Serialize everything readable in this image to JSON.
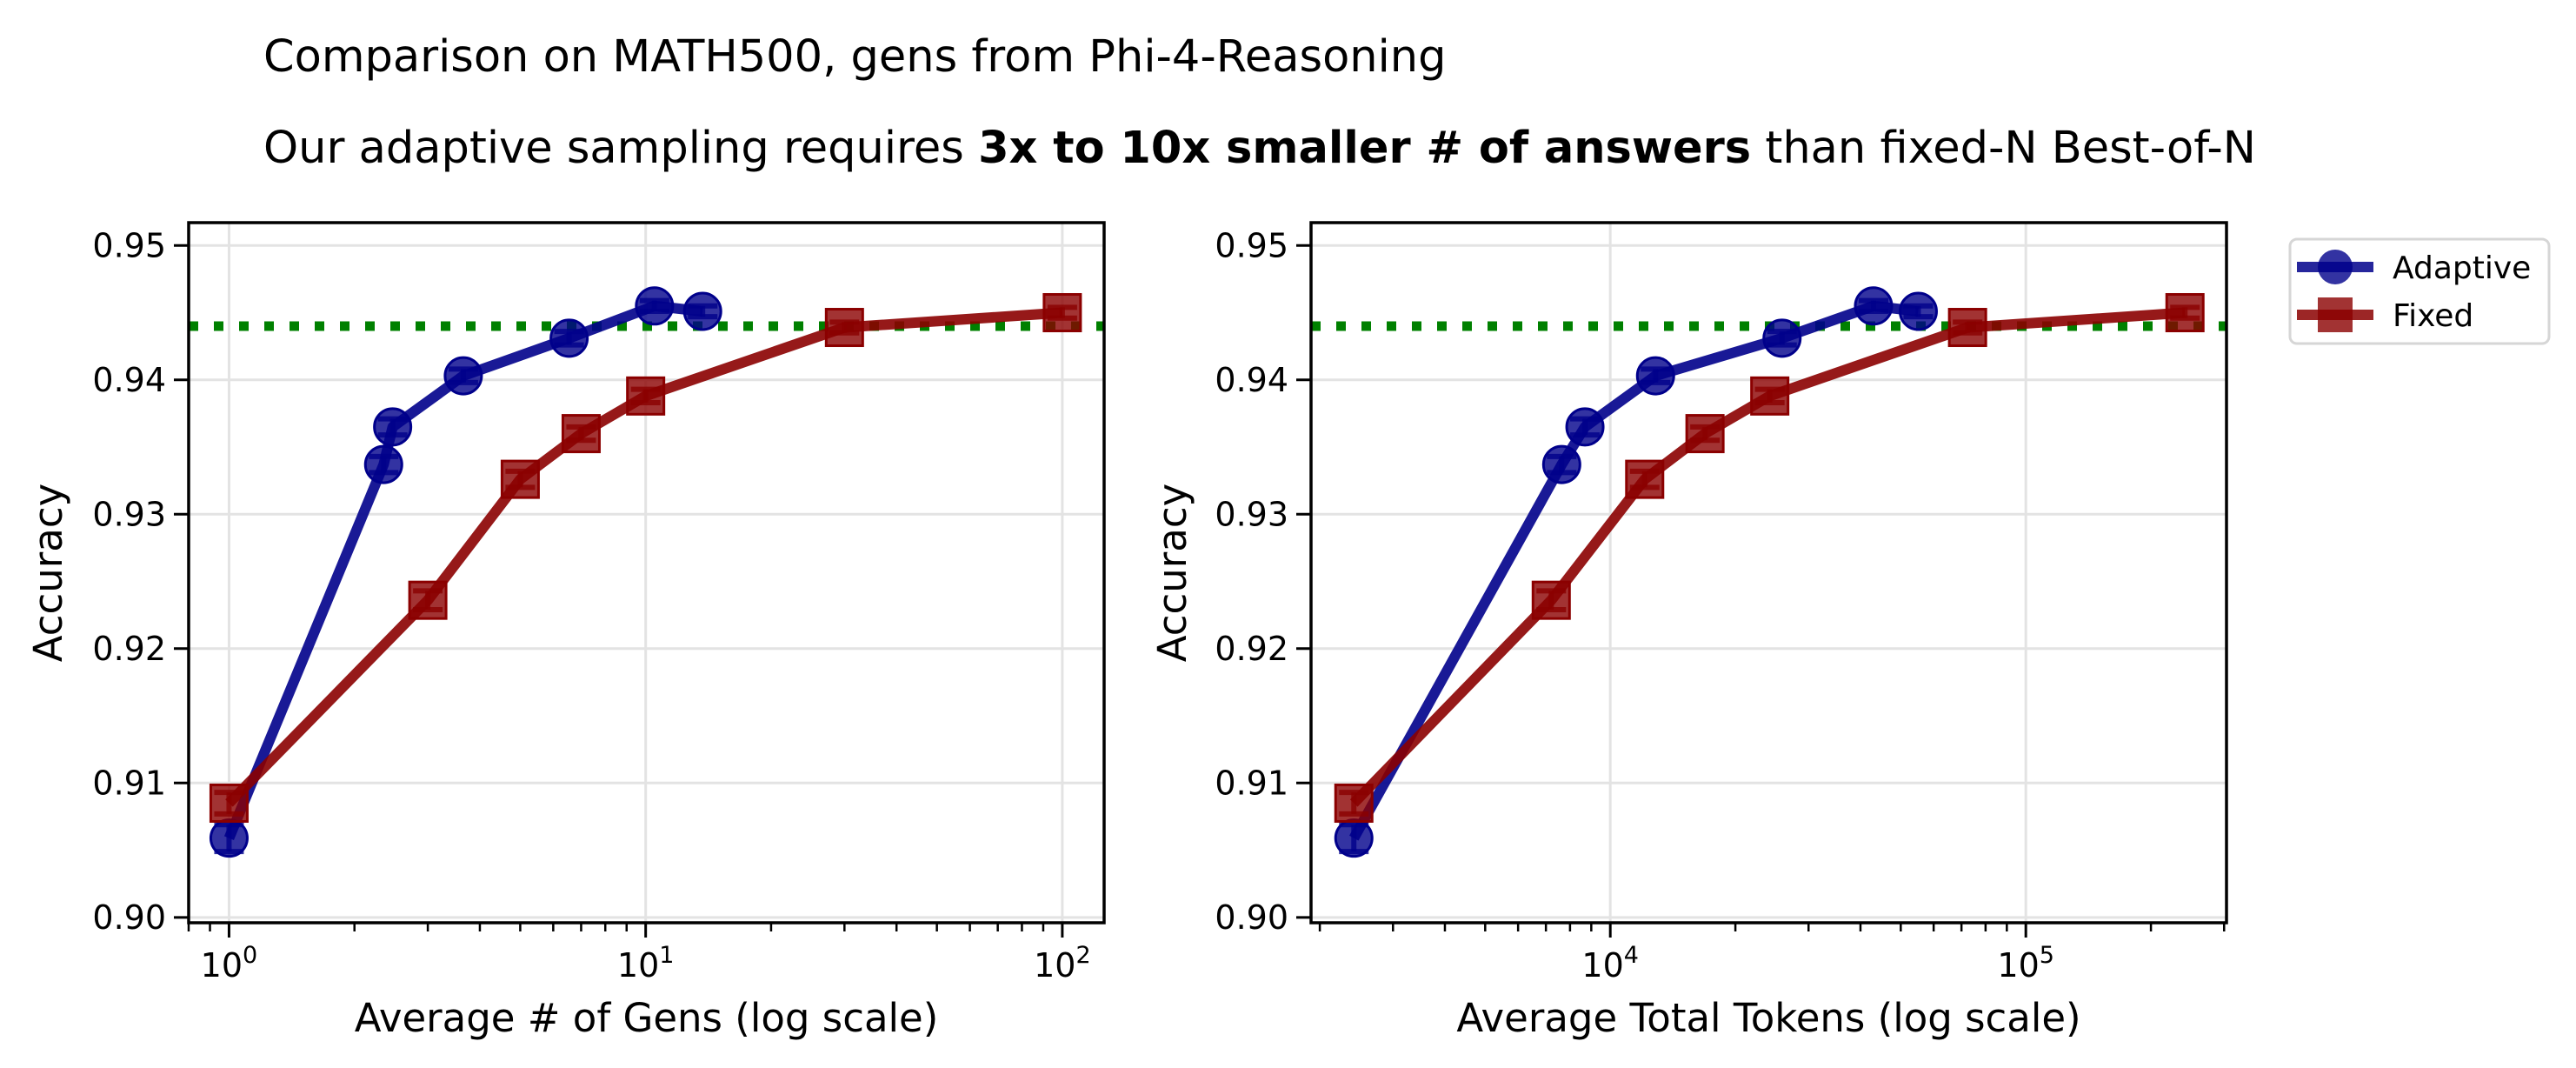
{
  "title": {
    "line1": "Comparison on MATH500, gens from Phi-4-Reasoning",
    "line2_prefix": "Our adaptive sampling requires ",
    "line2_bold": "3x to 10x smaller # of answers",
    "line2_suffix": " than fixed-N Best-of-N"
  },
  "legend": {
    "placement": "outside-top-right",
    "items": [
      {
        "label": "Adaptive",
        "color": "#00008b",
        "marker": "circle"
      },
      {
        "label": "Fixed",
        "color": "#8b0000",
        "marker": "square"
      }
    ]
  },
  "reference_line": {
    "y": 0.944,
    "color": "#008000",
    "style": "dotted"
  },
  "chart_data": [
    {
      "type": "line",
      "title": "",
      "xlabel": "Average # of Gens (log scale)",
      "ylabel": "Accuracy",
      "xscale": "log",
      "xlim": [
        0.8,
        126
      ],
      "ylim": [
        0.8996,
        0.9517
      ],
      "grid": true,
      "xticks": [
        {
          "value": 1,
          "label": "10^0",
          "base": "10",
          "exp": "0"
        },
        {
          "value": 10,
          "label": "10^1",
          "base": "10",
          "exp": "1"
        },
        {
          "value": 100,
          "label": "10^2",
          "base": "10",
          "exp": "2"
        }
      ],
      "yticks": [
        0.9,
        0.91,
        0.92,
        0.93,
        0.94,
        0.95
      ],
      "ytick_labels": [
        "0.90",
        "0.91",
        "0.92",
        "0.93",
        "0.94",
        "0.95"
      ],
      "series": [
        {
          "name": "Adaptive",
          "color": "#00008b",
          "marker": "circle",
          "x": [
            1.0,
            2.35,
            2.47,
            3.65,
            6.55,
            10.5,
            13.7
          ],
          "y": [
            0.9059,
            0.9337,
            0.9365,
            0.9403,
            0.9431,
            0.9455,
            0.9451
          ],
          "err": [
            0.001,
            0.0006,
            0.0006,
            0.0005,
            0.0005,
            0.0004,
            0.0004
          ]
        },
        {
          "name": "Fixed",
          "color": "#8b0000",
          "marker": "square",
          "x": [
            1,
            3,
            5,
            7,
            10,
            30,
            100
          ],
          "y": [
            0.9085,
            0.9236,
            0.9326,
            0.936,
            0.9388,
            0.9439,
            0.945
          ],
          "err": [
            0.0008,
            0.0007,
            0.0006,
            0.0005,
            0.0005,
            0.0004,
            0.0004
          ]
        }
      ]
    },
    {
      "type": "line",
      "title": "",
      "xlabel": "Average Total Tokens (log scale)",
      "ylabel": "Accuracy",
      "xscale": "log",
      "xlim": [
        1905,
        304000
      ],
      "ylim": [
        0.8996,
        0.9517
      ],
      "grid": true,
      "xticks": [
        {
          "value": 10000,
          "label": "10^4",
          "base": "10",
          "exp": "4"
        },
        {
          "value": 100000,
          "label": "10^5",
          "base": "10",
          "exp": "5"
        }
      ],
      "yticks": [
        0.9,
        0.91,
        0.92,
        0.93,
        0.94,
        0.95
      ],
      "ytick_labels": [
        "0.90",
        "0.91",
        "0.92",
        "0.93",
        "0.94",
        "0.95"
      ],
      "series": [
        {
          "name": "Adaptive",
          "color": "#00008b",
          "marker": "circle",
          "x": [
            2415,
            7640,
            8690,
            12850,
            25900,
            43000,
            55100
          ],
          "y": [
            0.9059,
            0.9337,
            0.9365,
            0.9403,
            0.9431,
            0.9455,
            0.9451
          ],
          "err": [
            0.001,
            0.0006,
            0.0006,
            0.0005,
            0.0005,
            0.0004,
            0.0004
          ]
        },
        {
          "name": "Fixed",
          "color": "#8b0000",
          "marker": "square",
          "x": [
            2415,
            7210,
            12100,
            16900,
            24200,
            72400,
            241500
          ],
          "y": [
            0.9085,
            0.9236,
            0.9326,
            0.936,
            0.9388,
            0.9439,
            0.945
          ],
          "err": [
            0.0008,
            0.0007,
            0.0006,
            0.0005,
            0.0005,
            0.0004,
            0.0004
          ]
        }
      ]
    }
  ]
}
